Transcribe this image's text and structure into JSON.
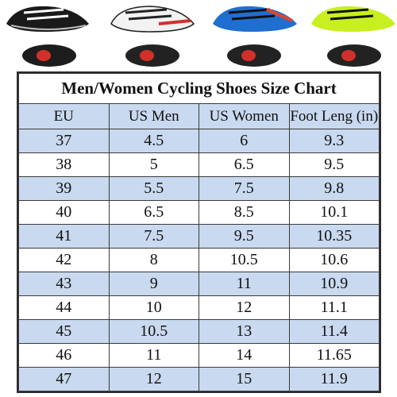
{
  "chart_data": {
    "type": "table",
    "title": "Men/Women Cycling Shoes Size  Chart",
    "columns": [
      "EU",
      "US Men",
      "US Women",
      "Foot Leng (in)"
    ],
    "rows": [
      [
        "37",
        "4.5",
        "6",
        "9.3"
      ],
      [
        "38",
        "5",
        "6.5",
        "9.5"
      ],
      [
        "39",
        "5.5",
        "7.5",
        "9.8"
      ],
      [
        "40",
        "6.5",
        "8.5",
        "10.1"
      ],
      [
        "41",
        "7.5",
        "9.5",
        "10.35"
      ],
      [
        "42",
        "8",
        "10.5",
        "10.6"
      ],
      [
        "43",
        "9",
        "11",
        "10.9"
      ],
      [
        "44",
        "10",
        "12",
        "11.1"
      ],
      [
        "45",
        "10.5",
        "13",
        "11.4"
      ],
      [
        "46",
        "11",
        "14",
        "11.65"
      ],
      [
        "47",
        "12",
        "15",
        "11.9"
      ]
    ]
  },
  "shoe_colors": [
    "#1a1a1a",
    "#f2f2f2",
    "#1f6fd1",
    "#c8f020"
  ],
  "row_band_color": "#c9d9ef"
}
